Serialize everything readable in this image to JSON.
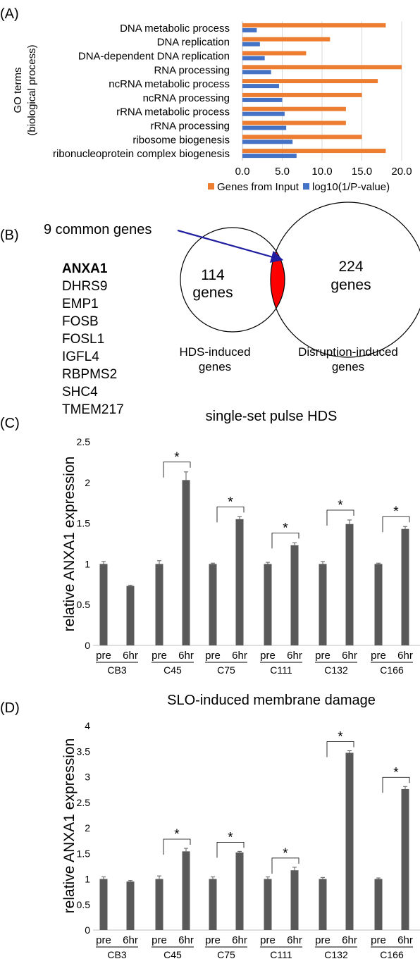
{
  "panel_labels": [
    "(A)",
    "(B)",
    "(C)",
    "(D)"
  ],
  "chart_data": [
    {
      "type": "bar",
      "orientation": "horizontal",
      "ylabel": "GO terms (biological process)",
      "categories": [
        "DNA metabolic process",
        "DNA replication",
        "DNA-dependent DNA replication",
        "RNA processing",
        "ncRNA metabolic process",
        "ncRNA processing",
        "rRNA metabolic process",
        "rRNA processing",
        "ribosome biogenesis",
        "ribonucleoprotein complex biogenesis"
      ],
      "series": [
        {
          "name": "Genes from Input",
          "color": "#ED7D31",
          "values": [
            18,
            11,
            8,
            20,
            17,
            15,
            13,
            13,
            15,
            18
          ]
        },
        {
          "name": "log10(1/P-value)",
          "color": "#4472C4",
          "values": [
            1.8,
            2.2,
            2.8,
            3.6,
            4.6,
            5.0,
            5.3,
            5.5,
            6.3,
            6.8
          ]
        }
      ],
      "xlim": [
        0,
        20
      ],
      "xticks": [
        "0.0",
        "5.0",
        "10.0",
        "15.0",
        "20.0"
      ],
      "grid": true,
      "legend_position": "bottom"
    },
    {
      "type": "bar",
      "title": "single-set pulse HDS",
      "ylabel": "relative ANXA1 expression",
      "ylim": [
        0,
        2.5
      ],
      "yticks": [
        "0",
        "0.5",
        "1",
        "1.5",
        "2",
        "2.5"
      ],
      "color": "#595959",
      "bar_labels": [
        "pre",
        "6hr"
      ],
      "groups": [
        "CB3",
        "C45",
        "C75",
        "C111",
        "C132",
        "C166"
      ],
      "values": [
        [
          1.0,
          0.73
        ],
        [
          1.0,
          2.03
        ],
        [
          1.0,
          1.55
        ],
        [
          1.0,
          1.23
        ],
        [
          1.0,
          1.49
        ],
        [
          1.0,
          1.43
        ]
      ],
      "errors": [
        [
          0.03,
          0.01
        ],
        [
          0.04,
          0.1
        ],
        [
          0.01,
          0.03
        ],
        [
          0.02,
          0.03
        ],
        [
          0.03,
          0.05
        ],
        [
          0.01,
          0.03
        ]
      ],
      "significance": [
        false,
        true,
        true,
        true,
        true,
        true
      ],
      "significance_marker": "*"
    },
    {
      "type": "bar",
      "title": "SLO-induced membrane damage",
      "ylabel": "relative ANXA1 expression",
      "ylim": [
        0,
        4
      ],
      "yticks": [
        "0",
        "0.5",
        "1",
        "1.5",
        "2",
        "2.5",
        "3",
        "3.5",
        "4"
      ],
      "color": "#595959",
      "bar_labels": [
        "pre",
        "6hr"
      ],
      "groups": [
        "CB3",
        "C45",
        "C75",
        "C111",
        "C132",
        "C166"
      ],
      "values": [
        [
          1.0,
          0.95
        ],
        [
          1.0,
          1.54
        ],
        [
          1.0,
          1.52
        ],
        [
          1.0,
          1.17
        ],
        [
          1.0,
          3.47
        ],
        [
          1.0,
          2.76
        ]
      ],
      "errors": [
        [
          0.04,
          0.02
        ],
        [
          0.06,
          0.06
        ],
        [
          0.04,
          0.02
        ],
        [
          0.04,
          0.06
        ],
        [
          0.03,
          0.04
        ],
        [
          0.02,
          0.05
        ]
      ],
      "significance": [
        false,
        true,
        true,
        true,
        true,
        true
      ],
      "significance_marker": "*"
    }
  ],
  "venn": {
    "common_label": "9 common genes",
    "common_genes": [
      "ANXA1",
      "DHRS9",
      "EMP1",
      "FOSB",
      "FOSL1",
      "IGFL4",
      "RBPMS2",
      "SHC4",
      "TMEM217"
    ],
    "left": {
      "count": "114",
      "unit": "genes",
      "label_line1": "HDS-induced",
      "label_line2": "genes"
    },
    "right": {
      "count": "224",
      "unit": "genes",
      "label_line1": "Disruption-induced",
      "label_line2": "genes"
    },
    "overlap_color": "#FF0000",
    "arrow_color": "#1F1FA0"
  }
}
